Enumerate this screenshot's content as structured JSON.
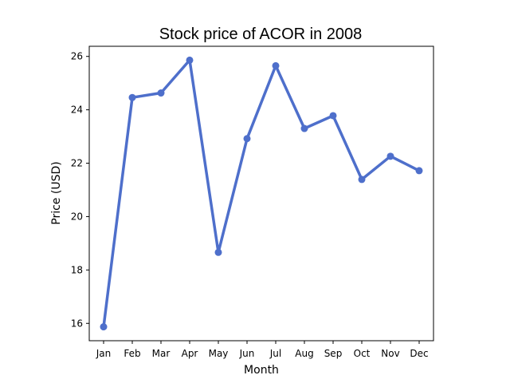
{
  "chart_data": {
    "type": "line",
    "title": "Stock price of ACOR in 2008",
    "xlabel": "Month",
    "ylabel": "Price (USD)",
    "categories": [
      "Jan",
      "Feb",
      "Mar",
      "Apr",
      "May",
      "Jun",
      "Jul",
      "Aug",
      "Sep",
      "Oct",
      "Nov",
      "Dec"
    ],
    "series": [
      {
        "values": [
          15.87,
          24.46,
          24.63,
          25.86,
          18.66,
          22.92,
          25.65,
          23.3,
          23.78,
          21.39,
          22.26,
          21.72
        ],
        "color": "#4e6fcb",
        "marker": "circle"
      }
    ],
    "y_ticks": [
      16,
      18,
      20,
      22,
      24,
      26
    ],
    "ylim": [
      15.35,
      26.38
    ],
    "grid": false,
    "legend": "none"
  }
}
